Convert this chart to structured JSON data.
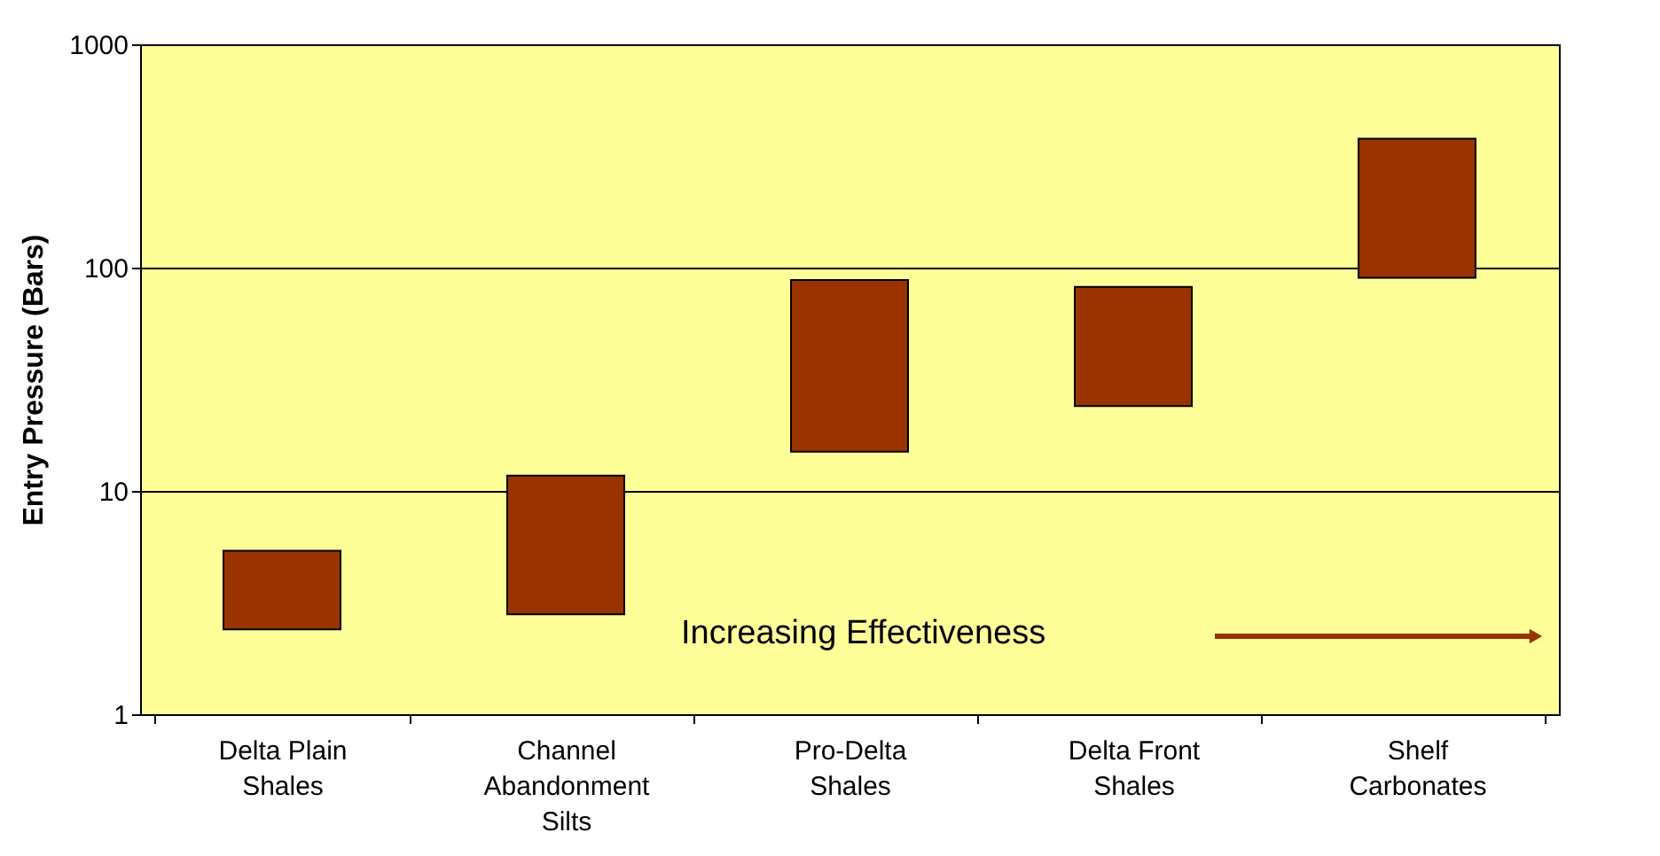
{
  "chart_data": {
    "type": "bar",
    "ylabel": "Entry Pressure (Bars)",
    "categories": [
      "Delta Plain\nShales",
      "Channel\nAbandonment\nSilts",
      "Pro-Delta\nShales",
      "Delta Front\nShales",
      "Shelf\nCarbonates"
    ],
    "base": [
      2.4,
      2.8,
      15,
      24,
      90
    ],
    "values": [
      3.0,
      8.9,
      73,
      58,
      288
    ],
    "color": "#993300",
    "log": "y",
    "ylim": [
      1,
      1000
    ],
    "yticks": [
      1,
      10,
      100,
      1000
    ],
    "grid": "y",
    "annotations": [
      "Increasing Effectiveness"
    ]
  }
}
